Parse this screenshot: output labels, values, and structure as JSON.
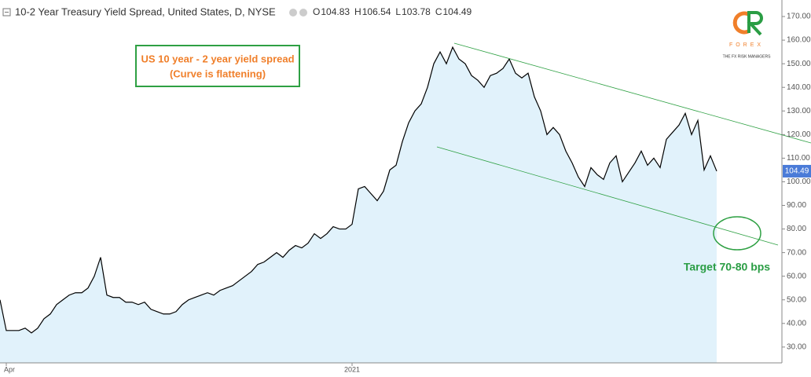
{
  "chart_data": {
    "type": "line",
    "title": "10-2 Year Treasury Yield Spread, United States, D, NYSE",
    "ohlc": [
      {
        "label": "O",
        "value": 104.83
      },
      {
        "label": "H",
        "value": 106.54
      },
      {
        "label": "L",
        "value": 103.78
      },
      {
        "label": "C",
        "value": 104.49
      }
    ],
    "annotations": [
      "US 10 year - 2 year yield spread",
      "(Curve is flattening)",
      "Target 70-80 bps"
    ],
    "logo": {
      "name": "FOREX",
      "tagline": "THE FX RISK MANAGERS"
    },
    "color": "#000000",
    "area_color": "#e1f2fb",
    "categories": [
      null,
      "Apr",
      null,
      null,
      null,
      null,
      null,
      null,
      null,
      null,
      null,
      null,
      null,
      null,
      null,
      null,
      null,
      null,
      null,
      null,
      null,
      null,
      null,
      null,
      null,
      null,
      null,
      null,
      null,
      null,
      null,
      null,
      null,
      null,
      null,
      null,
      null,
      null,
      null,
      null,
      null,
      null,
      null,
      null,
      null,
      null,
      null,
      null,
      null,
      null,
      null,
      null,
      null,
      null,
      null,
      null,
      "2021",
      null,
      null,
      null,
      null,
      null,
      null,
      null,
      null,
      null,
      null,
      null,
      null,
      null,
      null,
      null,
      null,
      null,
      null,
      null,
      null,
      null,
      null,
      null,
      null,
      null,
      null,
      null,
      null,
      null,
      null,
      null,
      null,
      null,
      null,
      null,
      null,
      null,
      null,
      null,
      null,
      null,
      null,
      null,
      null,
      null,
      null,
      null,
      null,
      null,
      null,
      null,
      null,
      null,
      null,
      null,
      null,
      null,
      null
    ],
    "values": [
      50,
      37,
      37,
      37,
      38,
      36,
      38,
      42,
      44,
      48,
      50,
      52,
      53,
      53,
      55,
      60,
      68,
      52,
      51,
      51,
      49,
      49,
      48,
      49,
      46,
      45,
      44,
      44,
      45,
      48,
      50,
      51,
      52,
      53,
      52,
      54,
      55,
      56,
      58,
      60,
      62,
      65,
      66,
      68,
      70,
      68,
      71,
      73,
      72,
      74,
      78,
      76,
      78,
      81,
      80,
      80,
      82,
      97,
      98,
      95,
      92,
      96,
      105,
      107,
      117,
      125,
      130,
      133,
      140,
      150,
      155,
      150,
      157,
      152,
      150,
      145,
      143,
      140,
      145,
      146,
      148,
      152,
      146,
      144,
      146,
      136,
      130,
      120,
      123,
      120,
      113,
      108,
      102,
      98,
      106,
      103,
      101,
      108,
      111,
      100,
      104,
      108,
      113,
      107,
      110,
      106,
      118,
      121,
      124,
      129,
      120,
      126,
      105,
      111,
      104.49
    ],
    "ylim": [
      23.3,
      177
    ],
    "yticks": [
      {
        "value": 30,
        "label": "30.00"
      },
      {
        "value": 40,
        "label": "40.00"
      },
      {
        "value": 50,
        "label": "50.00"
      },
      {
        "value": 60,
        "label": "60.00"
      },
      {
        "value": 70,
        "label": "70.00"
      },
      {
        "value": 80,
        "label": "80.00"
      },
      {
        "value": 90,
        "label": "90.00"
      },
      {
        "value": 100,
        "label": "100.00"
      },
      {
        "value": 110,
        "label": "110.00"
      },
      {
        "value": 120,
        "label": "120.00"
      },
      {
        "value": 130,
        "label": "130.00"
      },
      {
        "value": 140,
        "label": "140.00"
      },
      {
        "value": 150,
        "label": "150.00"
      },
      {
        "value": 160,
        "label": "160.00"
      },
      {
        "value": 170,
        "label": "170.00"
      }
    ],
    "grid": false
  }
}
